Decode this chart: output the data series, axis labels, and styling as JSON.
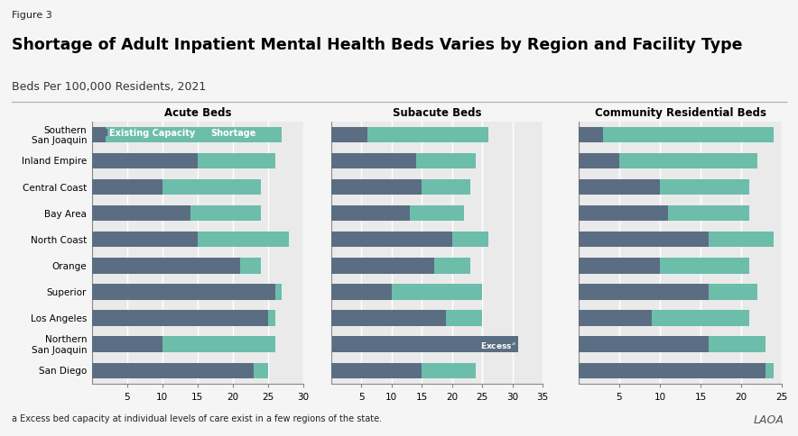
{
  "figure_label": "Figure 3",
  "title": "Shortage of Adult Inpatient Mental Health Beds Varies by Region and Facility Type",
  "subtitle": "Beds Per 100,000 Residents, 2021",
  "footnote_super": "a",
  "footnote_text": " Excess bed capacity at individual levels of care exist in a few regions of the state.",
  "watermark": "LAOA",
  "regions": [
    "Southern\nSan Joaquin",
    "Inland Empire",
    "Central Coast",
    "Bay Area",
    "North Coast",
    "Orange",
    "Superior",
    "Los Angeles",
    "Northern\nSan Joaquin",
    "San Diego"
  ],
  "color_existing": "#5b6d82",
  "color_shortage": "#6dbdab",
  "color_bg": "#eaeaea",
  "color_fig": "#f5f5f5",
  "panels": [
    {
      "title": "Acute Beds",
      "xlim_max": 30,
      "xticks": [
        5,
        10,
        15,
        20,
        25,
        30
      ],
      "existing": [
        2,
        15,
        10,
        14,
        15,
        21,
        26,
        25,
        10,
        23
      ],
      "total": [
        27,
        26,
        24,
        24,
        28,
        24,
        27,
        26,
        26,
        25
      ],
      "excess_row": null,
      "show_legend": true
    },
    {
      "title": "Subacute Beds",
      "xlim_max": 35,
      "xticks": [
        5,
        10,
        15,
        20,
        25,
        30,
        35
      ],
      "existing": [
        6,
        14,
        15,
        13,
        20,
        17,
        10,
        19,
        31,
        15
      ],
      "total": [
        26,
        24,
        23,
        22,
        26,
        23,
        25,
        25,
        31,
        24
      ],
      "excess_row": 8,
      "show_legend": false
    },
    {
      "title": "Community Residential Beds",
      "xlim_max": 25,
      "xticks": [
        5,
        10,
        15,
        20,
        25
      ],
      "existing": [
        3,
        5,
        10,
        11,
        16,
        10,
        16,
        9,
        16,
        23
      ],
      "total": [
        24,
        22,
        21,
        21,
        24,
        21,
        22,
        21,
        23,
        24
      ],
      "excess_row": null,
      "show_legend": false
    }
  ]
}
